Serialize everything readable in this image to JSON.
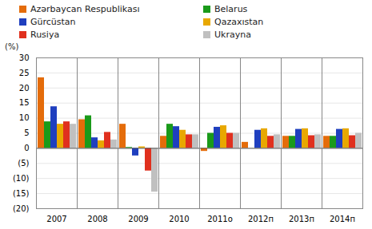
{
  "chart_data": {
    "type": "bar",
    "categories": [
      "2007",
      "2008",
      "2009",
      "2010",
      "2011o",
      "2012п",
      "2013п",
      "2014п"
    ],
    "series": [
      {
        "name": "Azərbaycan Respublikası",
        "color": "#e46c0a",
        "values": [
          23.4,
          9.5,
          8,
          4,
          -1,
          2,
          4,
          4
        ]
      },
      {
        "name": "Belarus",
        "color": "#1a9a1a",
        "values": [
          8.8,
          10.8,
          0.3,
          8,
          5,
          null,
          4,
          4
        ]
      },
      {
        "name": "Gürcüstan",
        "color": "#1f3fbf",
        "values": [
          13.8,
          3.5,
          -2.5,
          7.2,
          7,
          6,
          6.3,
          6.3
        ]
      },
      {
        "name": "Qazaxıstan",
        "color": "#e8a800",
        "values": [
          8,
          2.5,
          0.5,
          6,
          7.5,
          6.5,
          6.5,
          6.5
        ]
      },
      {
        "name": "Rusiya",
        "color": "#e0301e",
        "values": [
          8.8,
          5.3,
          -7.5,
          4.5,
          5,
          4,
          4.2,
          4.2
        ]
      },
      {
        "name": "Ukrayna",
        "color": "#c0c0c0",
        "values": [
          8,
          2.8,
          -14.5,
          4.5,
          5,
          4.5,
          4.5,
          5
        ]
      }
    ],
    "ylabel": "(%)",
    "ylim": [
      -20,
      30
    ],
    "yticks": [
      {
        "value": -20,
        "label": "(20)"
      },
      {
        "value": -15,
        "label": "(15)"
      },
      {
        "value": -10,
        "label": "(10)"
      },
      {
        "value": -5,
        "label": "(5)"
      },
      0,
      5,
      10,
      15,
      20,
      25,
      30
    ],
    "grid": true,
    "legend": "top"
  }
}
